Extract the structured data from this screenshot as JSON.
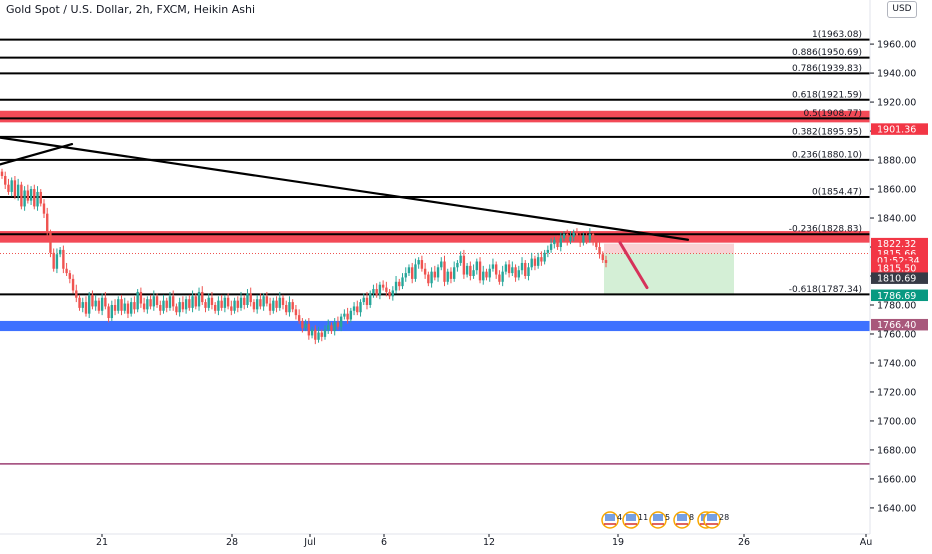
{
  "header": {
    "title": "Gold Spot / U.S. Dollar, 2h, FXCM, Heikin Ashi",
    "currency": "USD"
  },
  "colors": {
    "up": "#26a69a",
    "down": "#ef5350",
    "red_zone": "#f23645",
    "blue_zone": "#2962ff",
    "purple_line": "#9c3f73",
    "short_stop_fill": "#f8c9cd",
    "short_target_fill": "#cdeccf",
    "badge_red": "#f23645",
    "badge_green": "#089981",
    "badge_dark": "#363a45",
    "badge_mauve": "#a8587b"
  },
  "chart_data": {
    "type": "candlestick",
    "ylim": [
      1622,
      1978
    ],
    "y_axis_ticks": [
      "1960.00",
      "1940.00",
      "1920.00",
      "1900.00",
      "1880.00",
      "1860.00",
      "1840.00",
      "1820.00",
      "1800.00",
      "1780.00",
      "1760.00",
      "1740.00",
      "1720.00",
      "1700.00",
      "1680.00",
      "1660.00",
      "1640.00"
    ],
    "x_axis_labels": [
      "21",
      "28",
      "Jul",
      "6",
      "12",
      "19",
      "26",
      "Au"
    ],
    "fib_levels": [
      {
        "label": "1(1963.08)",
        "price": 1963.08
      },
      {
        "label": "0.886(1950.69)",
        "price": 1950.69
      },
      {
        "label": "0.786(1939.83)",
        "price": 1939.83
      },
      {
        "label": "0.618(1921.59)",
        "price": 1921.59
      },
      {
        "label": "0.5(1908.77)",
        "price": 1908.77
      },
      {
        "label": "0.382(1895.95)",
        "price": 1895.95
      },
      {
        "label": "0.236(1880.10)",
        "price": 1880.1
      },
      {
        "label": "0(1854.47)",
        "price": 1854.47
      },
      {
        "label": "-0.236(1828.83)",
        "price": 1828.83
      },
      {
        "label": "-0.618(1787.34)",
        "price": 1787.34
      }
    ],
    "zones": [
      {
        "name": "red-resistance-top",
        "from": 1906,
        "to": 1914
      },
      {
        "name": "red-resistance-mid",
        "from": 1823,
        "to": 1831
      },
      {
        "name": "blue-support",
        "from": 1762,
        "to": 1769
      }
    ],
    "purple_line_price": 1670.42,
    "price_badges": [
      {
        "text": "1901.36",
        "price": 1901.36,
        "style": "red"
      },
      {
        "text": "1822.32",
        "price": 1822.32,
        "style": "red"
      },
      {
        "text": "1815.66",
        "price": 1815.66,
        "style": "red"
      },
      {
        "text": "01:52:34",
        "price": 1810.8,
        "style": "red"
      },
      {
        "text": "1815.50",
        "price": 1805.4,
        "style": "red"
      },
      {
        "text": "1810.69",
        "price": 1798.5,
        "style": "dark"
      },
      {
        "text": "1786.69",
        "price": 1786.69,
        "style": "green"
      },
      {
        "text": "1766.40",
        "price": 1766.4,
        "style": "mauve"
      }
    ],
    "trendlines": [
      {
        "from": [
          0,
          1895.5
        ],
        "to": [
          688,
          1825
        ]
      },
      {
        "from": [
          0,
          1877
        ],
        "to": [
          72,
          1891
        ]
      },
      {
        "from": [
          620,
          1823
        ],
        "to": [
          647,
          1792
        ]
      }
    ],
    "short_position": {
      "entry": 1815.66,
      "stop": 1822.32,
      "target": 1786.69
    },
    "events": [
      "4",
      "11",
      "5",
      "8",
      "5",
      "28"
    ],
    "candles_close": [
      1869,
      1863,
      1858,
      1866,
      1855,
      1863,
      1848,
      1859,
      1852,
      1860,
      1848,
      1858,
      1850,
      1843,
      1830,
      1816,
      1805,
      1815,
      1818,
      1805,
      1802,
      1798,
      1790,
      1785,
      1778,
      1782,
      1774,
      1787,
      1779,
      1783,
      1776,
      1785,
      1779,
      1771,
      1780,
      1776,
      1784,
      1776,
      1781,
      1774,
      1782,
      1777,
      1789,
      1781,
      1777,
      1784,
      1779,
      1786,
      1780,
      1776,
      1783,
      1778,
      1786,
      1779,
      1775,
      1782,
      1777,
      1784,
      1778,
      1786,
      1779,
      1789,
      1782,
      1778,
      1785,
      1780,
      1776,
      1783,
      1778,
      1785,
      1779,
      1776,
      1783,
      1778,
      1785,
      1780,
      1788,
      1782,
      1777,
      1784,
      1779,
      1786,
      1781,
      1776,
      1783,
      1778,
      1785,
      1780,
      1775,
      1782,
      1777,
      1773,
      1769,
      1764,
      1767,
      1759,
      1763,
      1756,
      1761,
      1758,
      1763,
      1766,
      1762,
      1768,
      1765,
      1772,
      1774,
      1770,
      1776,
      1779,
      1775,
      1782,
      1785,
      1780,
      1788,
      1791,
      1787,
      1794,
      1792,
      1789,
      1786,
      1790,
      1796,
      1793,
      1799,
      1802,
      1806,
      1798,
      1808,
      1811,
      1805,
      1801,
      1795,
      1803,
      1799,
      1806,
      1810,
      1796,
      1803,
      1798,
      1806,
      1809,
      1814,
      1801,
      1807,
      1800,
      1804,
      1810,
      1797,
      1803,
      1799,
      1805,
      1808,
      1801,
      1796,
      1803,
      1808,
      1802,
      1806,
      1799,
      1804,
      1809,
      1800,
      1806,
      1812,
      1807,
      1813,
      1810,
      1816,
      1818,
      1822,
      1825,
      1820,
      1826,
      1829,
      1824,
      1827,
      1830,
      1826,
      1823,
      1828,
      1825,
      1829,
      1824,
      1820,
      1815,
      1811,
      1809
    ]
  }
}
